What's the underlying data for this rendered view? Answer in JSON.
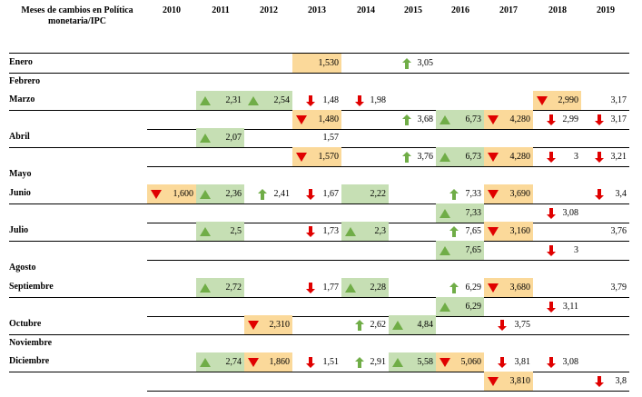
{
  "header": {
    "first_col": "Meses de cambios en Política monetaria/IPC",
    "years": [
      "2010",
      "2011",
      "2012",
      "2013",
      "2014",
      "2015",
      "2016",
      "2017",
      "2018",
      "2019"
    ]
  },
  "month_labels": [
    "Enero",
    "Febrero",
    "Marzo",
    "Abril",
    "Mayo",
    "Junio",
    "Julio",
    "Agosto",
    "Septiembre",
    "Octubre",
    "Noviembre",
    "Diciembre"
  ],
  "cells": [
    {
      "row": 0,
      "col": 3,
      "value": "1,530",
      "fill": "down",
      "arrow": "none"
    },
    {
      "row": 0,
      "col": 5,
      "value": "3,05",
      "fill": "none",
      "arrow": "up-thin"
    },
    {
      "row": 2,
      "col": 1,
      "value": "2,31",
      "fill": "up",
      "arrow": "up-tri"
    },
    {
      "row": 2,
      "col": 2,
      "value": "2,54",
      "fill": "up",
      "arrow": "up-tri"
    },
    {
      "row": 2,
      "col": 3,
      "value": "1,48",
      "fill": "none",
      "arrow": "down-thin"
    },
    {
      "row": 2,
      "col": 4,
      "value": "1,98",
      "fill": "none",
      "arrow": "down-thin"
    },
    {
      "row": 2,
      "col": 8,
      "value": "2,990",
      "fill": "down",
      "arrow": "down-tri"
    },
    {
      "row": 2,
      "col": 9,
      "value": "3,17",
      "fill": "none",
      "arrow": "none"
    },
    {
      "row": 3,
      "col": 3,
      "value": "1,480",
      "fill": "down",
      "arrow": "down-tri"
    },
    {
      "row": 3,
      "col": 5,
      "value": "3,68",
      "fill": "none",
      "arrow": "up-thin"
    },
    {
      "row": 3,
      "col": 6,
      "value": "6,73",
      "fill": "up",
      "arrow": "up-tri"
    },
    {
      "row": 3,
      "col": 7,
      "value": "4,280",
      "fill": "down",
      "arrow": "down-tri"
    },
    {
      "row": 3,
      "col": 8,
      "value": "2,99",
      "fill": "none",
      "arrow": "down-thin"
    },
    {
      "row": 3,
      "col": 9,
      "value": "3,17",
      "fill": "none",
      "arrow": "down-thin"
    },
    {
      "row": 4,
      "col": 1,
      "value": "2,07",
      "fill": "up",
      "arrow": "up-tri"
    },
    {
      "row": 4,
      "col": 3,
      "value": "1,57",
      "fill": "none",
      "arrow": "none"
    },
    {
      "row": 5,
      "col": 3,
      "value": "1,570",
      "fill": "down",
      "arrow": "down-tri"
    },
    {
      "row": 5,
      "col": 5,
      "value": "3,76",
      "fill": "none",
      "arrow": "up-thin"
    },
    {
      "row": 5,
      "col": 6,
      "value": "6,73",
      "fill": "up",
      "arrow": "up-tri"
    },
    {
      "row": 5,
      "col": 7,
      "value": "4,280",
      "fill": "down",
      "arrow": "down-tri"
    },
    {
      "row": 5,
      "col": 8,
      "value": "3",
      "fill": "none",
      "arrow": "down-thin"
    },
    {
      "row": 5,
      "col": 9,
      "value": "3,21",
      "fill": "none",
      "arrow": "down-thin"
    },
    {
      "row": 7,
      "col": 0,
      "value": "1,600",
      "fill": "down",
      "arrow": "down-tri"
    },
    {
      "row": 7,
      "col": 1,
      "value": "2,36",
      "fill": "up",
      "arrow": "up-tri"
    },
    {
      "row": 7,
      "col": 2,
      "value": "2,41",
      "fill": "none",
      "arrow": "up-thin"
    },
    {
      "row": 7,
      "col": 3,
      "value": "1,67",
      "fill": "none",
      "arrow": "down-thin"
    },
    {
      "row": 7,
      "col": 4,
      "value": "2,22",
      "fill": "up",
      "arrow": "none"
    },
    {
      "row": 7,
      "col": 6,
      "value": "7,33",
      "fill": "none",
      "arrow": "up-thin"
    },
    {
      "row": 7,
      "col": 7,
      "value": "3,690",
      "fill": "down",
      "arrow": "down-tri"
    },
    {
      "row": 7,
      "col": 9,
      "value": "3,4",
      "fill": "none",
      "arrow": "down-thin"
    },
    {
      "row": 8,
      "col": 6,
      "value": "7,33",
      "fill": "up",
      "arrow": "up-tri"
    },
    {
      "row": 8,
      "col": 8,
      "value": "3,08",
      "fill": "none",
      "arrow": "down-thin"
    },
    {
      "row": 9,
      "col": 1,
      "value": "2,5",
      "fill": "up",
      "arrow": "up-tri"
    },
    {
      "row": 9,
      "col": 3,
      "value": "1,73",
      "fill": "none",
      "arrow": "down-thin"
    },
    {
      "row": 9,
      "col": 4,
      "value": "2,3",
      "fill": "up",
      "arrow": "up-tri"
    },
    {
      "row": 9,
      "col": 6,
      "value": "7,65",
      "fill": "none",
      "arrow": "up-thin"
    },
    {
      "row": 9,
      "col": 7,
      "value": "3,160",
      "fill": "down",
      "arrow": "down-tri"
    },
    {
      "row": 9,
      "col": 9,
      "value": "3,76",
      "fill": "none",
      "arrow": "none"
    },
    {
      "row": 10,
      "col": 6,
      "value": "7,65",
      "fill": "up",
      "arrow": "up-tri"
    },
    {
      "row": 10,
      "col": 8,
      "value": "3",
      "fill": "none",
      "arrow": "down-thin"
    },
    {
      "row": 12,
      "col": 1,
      "value": "2,72",
      "fill": "up",
      "arrow": "up-tri"
    },
    {
      "row": 12,
      "col": 3,
      "value": "1,77",
      "fill": "none",
      "arrow": "down-thin"
    },
    {
      "row": 12,
      "col": 4,
      "value": "2,28",
      "fill": "up",
      "arrow": "up-tri"
    },
    {
      "row": 12,
      "col": 6,
      "value": "6,29",
      "fill": "none",
      "arrow": "up-thin"
    },
    {
      "row": 12,
      "col": 7,
      "value": "3,680",
      "fill": "down",
      "arrow": "down-tri"
    },
    {
      "row": 12,
      "col": 9,
      "value": "3,79",
      "fill": "none",
      "arrow": "none"
    },
    {
      "row": 13,
      "col": 6,
      "value": "6,29",
      "fill": "up",
      "arrow": "up-tri"
    },
    {
      "row": 13,
      "col": 8,
      "value": "3,11",
      "fill": "none",
      "arrow": "down-thin"
    },
    {
      "row": 14,
      "col": 2,
      "value": "2,310",
      "fill": "down",
      "arrow": "down-tri"
    },
    {
      "row": 14,
      "col": 4,
      "value": "2,62",
      "fill": "none",
      "arrow": "up-thin"
    },
    {
      "row": 14,
      "col": 5,
      "value": "4,84",
      "fill": "up",
      "arrow": "up-tri"
    },
    {
      "row": 14,
      "col": 7,
      "value": "3,75",
      "fill": "none",
      "arrow": "down-thin"
    },
    {
      "row": 16,
      "col": 1,
      "value": "2,74",
      "fill": "up",
      "arrow": "up-tri"
    },
    {
      "row": 16,
      "col": 2,
      "value": "1,860",
      "fill": "down",
      "arrow": "down-tri"
    },
    {
      "row": 16,
      "col": 3,
      "value": "1,51",
      "fill": "none",
      "arrow": "down-thin"
    },
    {
      "row": 16,
      "col": 4,
      "value": "2,91",
      "fill": "none",
      "arrow": "up-thin"
    },
    {
      "row": 16,
      "col": 5,
      "value": "5,58",
      "fill": "up",
      "arrow": "up-tri"
    },
    {
      "row": 16,
      "col": 6,
      "value": "5,060",
      "fill": "down",
      "arrow": "down-tri"
    },
    {
      "row": 16,
      "col": 7,
      "value": "3,81",
      "fill": "none",
      "arrow": "down-thin"
    },
    {
      "row": 16,
      "col": 8,
      "value": "3,08",
      "fill": "none",
      "arrow": "down-thin"
    },
    {
      "row": 17,
      "col": 7,
      "value": "3,810",
      "fill": "down",
      "arrow": "down-tri"
    },
    {
      "row": 17,
      "col": 9,
      "value": "3,8",
      "fill": "none",
      "arrow": "down-thin"
    }
  ],
  "colors": {
    "up_fill": "#c6dfb4",
    "down_fill": "#fbd99a",
    "up_arrow": "#70ad47",
    "down_arrow": "#e00000"
  },
  "icons": {
    "up-thin": "arrow-up-icon",
    "up-tri": "triangle-up-icon",
    "down-thin": "arrow-down-icon",
    "down-tri": "triangle-down-icon"
  }
}
